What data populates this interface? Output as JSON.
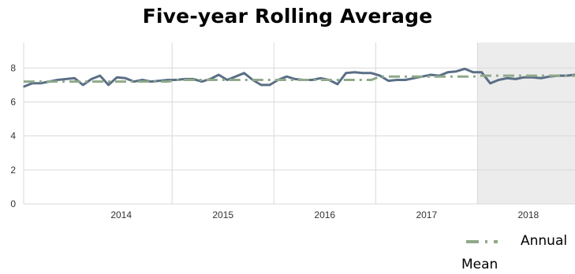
{
  "chart_data": {
    "type": "line",
    "title": "Five-year Rolling Average",
    "xlabel": "",
    "ylabel": "",
    "ylim": [
      0,
      9.5
    ],
    "y_ticks": [
      "0",
      "2",
      "4",
      "6",
      "8"
    ],
    "x_tick_labels": [
      "2014",
      "2015",
      "2016",
      "2017",
      "2018"
    ],
    "x_range": [
      "2013-07",
      "2018-12"
    ],
    "grid": true,
    "shaded_region": {
      "from": "2018-01",
      "to": "2018-12",
      "color": "#ececec"
    },
    "legend_position": "bottom-right",
    "series": [
      {
        "color": "#5a6f86",
        "style": "solid",
        "x": [
          "2013-07",
          "2013-08",
          "2013-09",
          "2013-10",
          "2013-11",
          "2013-12",
          "2014-01",
          "2014-02",
          "2014-03",
          "2014-04",
          "2014-05",
          "2014-06",
          "2014-07",
          "2014-08",
          "2014-09",
          "2014-10",
          "2014-11",
          "2014-12",
          "2015-01",
          "2015-02",
          "2015-03",
          "2015-04",
          "2015-05",
          "2015-06",
          "2015-07",
          "2015-08",
          "2015-09",
          "2015-10",
          "2015-11",
          "2015-12",
          "2016-01",
          "2016-02",
          "2016-03",
          "2016-04",
          "2016-05",
          "2016-06",
          "2016-07",
          "2016-08",
          "2016-09",
          "2016-10",
          "2016-11",
          "2016-12",
          "2017-01",
          "2017-02",
          "2017-03",
          "2017-04",
          "2017-05",
          "2017-06",
          "2017-07",
          "2017-08",
          "2017-09",
          "2017-10",
          "2017-11",
          "2017-12",
          "2018-01",
          "2018-02",
          "2018-03",
          "2018-04",
          "2018-05",
          "2018-06",
          "2018-07",
          "2018-08",
          "2018-09",
          "2018-10",
          "2018-11",
          "2018-12"
        ],
        "values": [
          6.9,
          7.1,
          7.1,
          7.2,
          7.3,
          7.35,
          7.4,
          7.0,
          7.35,
          7.55,
          7.0,
          7.45,
          7.4,
          7.2,
          7.3,
          7.2,
          7.25,
          7.3,
          7.3,
          7.35,
          7.35,
          7.2,
          7.35,
          7.6,
          7.3,
          7.5,
          7.7,
          7.3,
          7.0,
          7.0,
          7.3,
          7.5,
          7.35,
          7.3,
          7.3,
          7.4,
          7.3,
          7.05,
          7.7,
          7.75,
          7.7,
          7.7,
          7.55,
          7.25,
          7.3,
          7.3,
          7.4,
          7.5,
          7.6,
          7.55,
          7.75,
          7.8,
          7.95,
          7.75,
          7.75,
          7.1,
          7.3,
          7.4,
          7.35,
          7.45,
          7.45,
          7.4,
          7.5,
          7.55,
          7.55,
          7.6
        ]
      },
      {
        "name": "Annual Mean",
        "color": "#8fa98a",
        "style": "dash-dot",
        "x": [
          "2013-07",
          "2013-12",
          "2014-01",
          "2014-12",
          "2015-01",
          "2015-12",
          "2016-01",
          "2016-12",
          "2017-01",
          "2017-12",
          "2018-01",
          "2018-12"
        ],
        "values": [
          7.2,
          7.2,
          7.2,
          7.2,
          7.3,
          7.3,
          7.3,
          7.3,
          7.5,
          7.5,
          7.55,
          7.55
        ]
      }
    ]
  },
  "legend": {
    "label_line1": "Annual",
    "label_line2": "Mean"
  }
}
